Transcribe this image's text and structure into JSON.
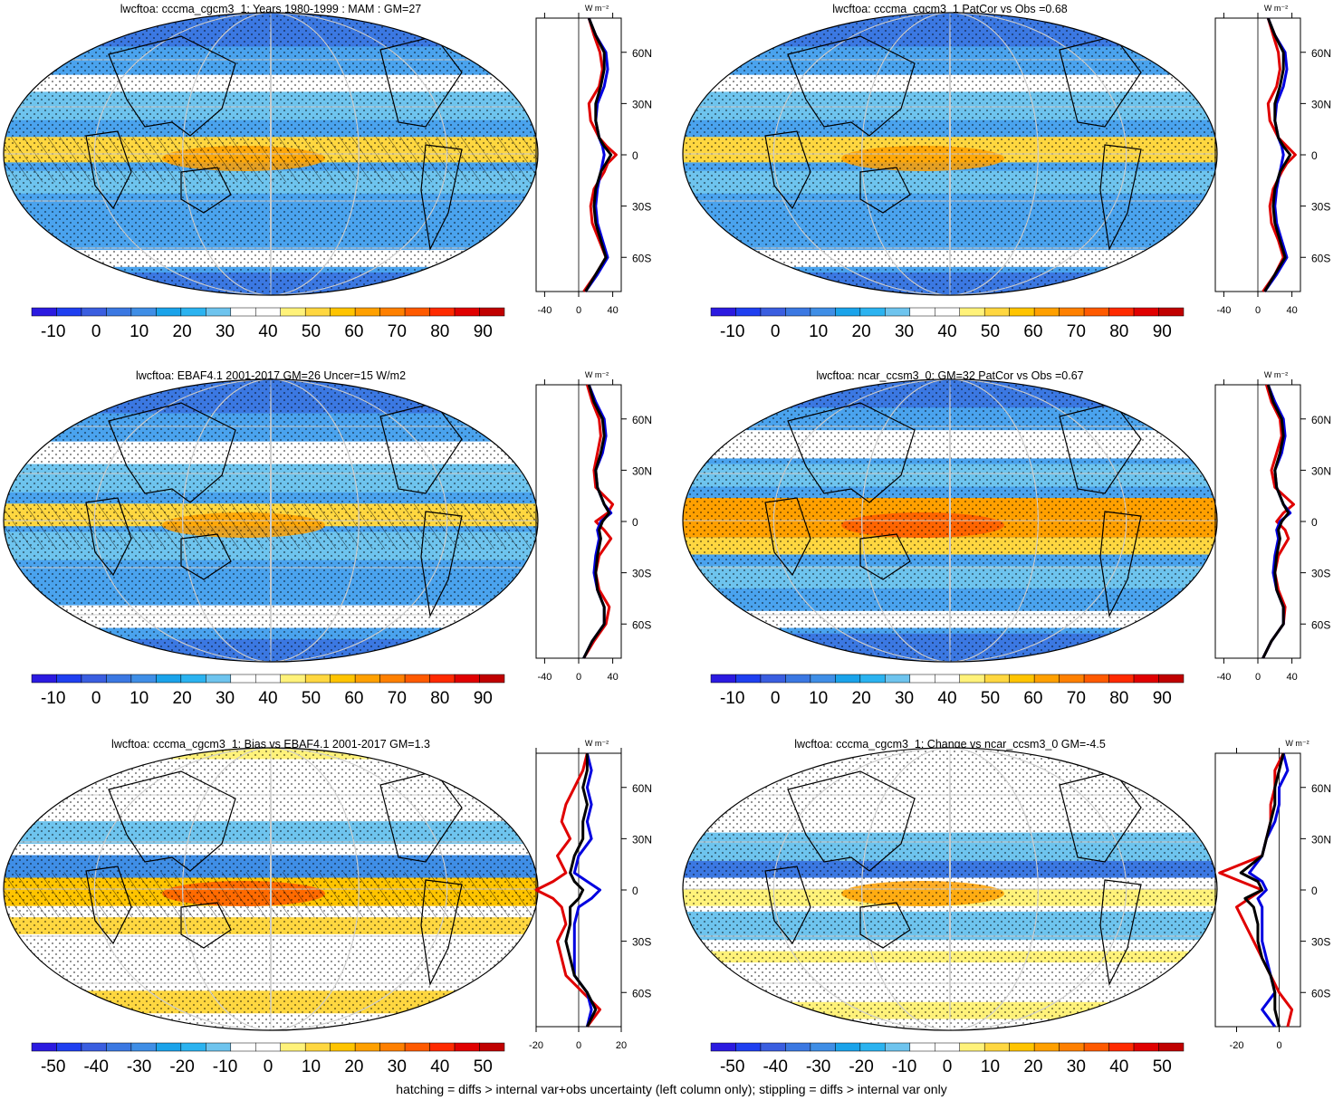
{
  "figure": {
    "caption": "hatching = diffs > internal var+obs uncertainty (left column only); stippling = diffs > internal var only"
  },
  "colors": {
    "model": "#e00000",
    "obs": "#0000e0",
    "ref": "#000000",
    "coast": "#000000"
  },
  "chart_data": [
    {
      "type": "heatmap",
      "title": "lwcftoa: cccma_cgcm3_1: Years 1980-1999 : MAM : GM=27",
      "colorbar": {
        "ticks": [
          "-10",
          "0",
          "10",
          "20",
          "30",
          "40",
          "50",
          "60",
          "70",
          "80",
          "90"
        ],
        "range": [
          -15,
          95
        ],
        "palette": "full"
      },
      "map_style": "mean",
      "hatching": true,
      "stippling": true,
      "profile": {
        "xticks": [
          "-40",
          "0",
          "40"
        ],
        "xlim": [
          -50,
          50
        ],
        "unit_label": "W m⁻²",
        "lat_labels": [
          "60N",
          "30N",
          "0",
          "30S",
          "60S"
        ],
        "lat": [
          80,
          70,
          60,
          50,
          40,
          30,
          20,
          10,
          5,
          0,
          -5,
          -10,
          -20,
          -30,
          -40,
          -50,
          -60,
          -70,
          -80
        ],
        "series": [
          {
            "role": "model",
            "values": [
              12,
              18,
              25,
              28,
              24,
              12,
              14,
              24,
              33,
              44,
              34,
              30,
              18,
              14,
              16,
              24,
              32,
              20,
              6
            ]
          },
          {
            "role": "obs",
            "values": [
              12,
              20,
              32,
              34,
              30,
              22,
              20,
              24,
              28,
              30,
              28,
              26,
              22,
              20,
              22,
              28,
              34,
              22,
              8
            ]
          },
          {
            "role": "ref",
            "values": [
              12,
              20,
              30,
              30,
              26,
              20,
              20,
              24,
              30,
              38,
              32,
              26,
              20,
              18,
              20,
              26,
              32,
              20,
              8
            ]
          }
        ]
      }
    },
    {
      "type": "heatmap",
      "title": "lwcftoa: cccma_cgcm3_1 PatCor vs Obs =0.68",
      "colorbar": {
        "ticks": [
          "-10",
          "0",
          "10",
          "20",
          "30",
          "40",
          "50",
          "60",
          "70",
          "80",
          "90"
        ],
        "range": [
          -15,
          95
        ],
        "palette": "full"
      },
      "map_style": "mean",
      "hatching": false,
      "stippling": true,
      "profile": {
        "xticks": [
          "-40",
          "0",
          "40"
        ],
        "xlim": [
          -50,
          50
        ],
        "unit_label": "W m⁻²",
        "lat_labels": [
          "60N",
          "30N",
          "0",
          "30S",
          "60S"
        ],
        "lat": [
          80,
          70,
          60,
          50,
          40,
          30,
          20,
          10,
          5,
          0,
          -5,
          -10,
          -20,
          -30,
          -40,
          -50,
          -60,
          -70,
          -80
        ],
        "series": [
          {
            "role": "model",
            "values": [
              12,
              18,
              24,
              26,
              22,
              12,
              14,
              24,
              34,
              44,
              34,
              28,
              18,
              14,
              16,
              24,
              30,
              20,
              6
            ]
          },
          {
            "role": "obs",
            "values": [
              12,
              20,
              32,
              34,
              30,
              22,
              20,
              24,
              28,
              30,
              28,
              26,
              22,
              20,
              22,
              28,
              34,
              22,
              8
            ]
          },
          {
            "role": "ref",
            "values": [
              12,
              20,
              30,
              30,
              26,
              20,
              20,
              24,
              30,
              38,
              32,
              26,
              20,
              18,
              20,
              26,
              32,
              20,
              8
            ]
          }
        ]
      }
    },
    {
      "type": "heatmap",
      "title": "lwcftoa: EBAF4.1 2001-2017 GM=26 Uncer=15 W/m2",
      "colorbar": {
        "ticks": [
          "-10",
          "0",
          "10",
          "20",
          "30",
          "40",
          "50",
          "60",
          "70",
          "80",
          "90"
        ],
        "range": [
          -15,
          95
        ],
        "palette": "full"
      },
      "map_style": "obs",
      "hatching": true,
      "stippling": true,
      "profile": {
        "xticks": [
          "-40",
          "0",
          "40"
        ],
        "xlim": [
          -50,
          50
        ],
        "unit_label": "W m⁻²",
        "lat_labels": [
          "60N",
          "30N",
          "0",
          "30S",
          "60S"
        ],
        "lat": [
          80,
          70,
          60,
          50,
          40,
          30,
          20,
          10,
          5,
          0,
          -5,
          -10,
          -20,
          -30,
          -40,
          -50,
          -60,
          -70,
          -80
        ],
        "series": [
          {
            "role": "model",
            "values": [
              10,
              16,
              24,
              26,
              22,
              18,
              20,
              40,
              34,
              20,
              30,
              38,
              24,
              20,
              24,
              36,
              32,
              18,
              6
            ]
          },
          {
            "role": "obs",
            "values": [
              12,
              20,
              30,
              32,
              28,
              20,
              22,
              30,
              38,
              26,
              22,
              24,
              20,
              18,
              22,
              30,
              30,
              16,
              6
            ]
          },
          {
            "role": "ref",
            "values": [
              12,
              18,
              28,
              30,
              26,
              20,
              22,
              30,
              36,
              28,
              24,
              26,
              22,
              20,
              22,
              30,
              30,
              16,
              6
            ]
          }
        ]
      }
    },
    {
      "type": "heatmap",
      "title": "lwcftoa: ncar_ccsm3_0: GM=32 PatCor vs Obs =0.67",
      "colorbar": {
        "ticks": [
          "-10",
          "0",
          "10",
          "20",
          "30",
          "40",
          "50",
          "60",
          "70",
          "80",
          "90"
        ],
        "range": [
          -15,
          95
        ],
        "palette": "full"
      },
      "map_style": "ncar",
      "hatching": false,
      "stippling": true,
      "profile": {
        "xticks": [
          "-40",
          "0",
          "40"
        ],
        "xlim": [
          -50,
          50
        ],
        "unit_label": "W m⁻²",
        "lat_labels": [
          "60N",
          "30N",
          "0",
          "30S",
          "60S"
        ],
        "lat": [
          80,
          70,
          60,
          50,
          40,
          30,
          20,
          10,
          5,
          0,
          -5,
          -10,
          -20,
          -30,
          -40,
          -50,
          -60,
          -70,
          -80
        ],
        "series": [
          {
            "role": "model",
            "values": [
              10,
              16,
              26,
              28,
              22,
              16,
              20,
              42,
              30,
              22,
              32,
              36,
              24,
              20,
              24,
              32,
              30,
              16,
              6
            ]
          },
          {
            "role": "obs",
            "values": [
              12,
              20,
              30,
              32,
              28,
              20,
              22,
              30,
              38,
              26,
              22,
              24,
              20,
              18,
              22,
              30,
              30,
              16,
              6
            ]
          },
          {
            "role": "ref",
            "values": [
              12,
              18,
              28,
              30,
              26,
              20,
              22,
              30,
              36,
              28,
              24,
              26,
              22,
              20,
              22,
              30,
              30,
              16,
              6
            ]
          }
        ]
      }
    },
    {
      "type": "heatmap",
      "title": "lwcftoa: cccma_cgcm3_1: Bias vs EBAF4.1 2001-2017 GM=1.3",
      "colorbar": {
        "ticks": [
          "-50",
          "-40",
          "-30",
          "-20",
          "-10",
          "0",
          "10",
          "20",
          "30",
          "40",
          "50"
        ],
        "range": [
          -55,
          55
        ],
        "palette": "full"
      },
      "map_style": "bias",
      "hatching": true,
      "stippling": true,
      "profile": {
        "xticks": [
          "-20",
          "0",
          "20"
        ],
        "xlim": [
          -20,
          20
        ],
        "unit_label": "W m⁻²",
        "lat_labels": [
          "60N",
          "30N",
          "0",
          "30S",
          "60S"
        ],
        "lat": [
          80,
          70,
          60,
          50,
          40,
          30,
          20,
          10,
          5,
          0,
          -5,
          -10,
          -20,
          -30,
          -40,
          -50,
          -60,
          -70,
          -80
        ],
        "series": [
          {
            "role": "model",
            "values": [
              4,
              2,
              -2,
              -6,
              -8,
              -4,
              -10,
              -6,
              -12,
              -20,
              -12,
              -8,
              -6,
              -10,
              -8,
              -6,
              2,
              10,
              4
            ]
          },
          {
            "role": "obs",
            "values": [
              4,
              6,
              4,
              6,
              4,
              6,
              0,
              -2,
              4,
              10,
              6,
              0,
              -2,
              -2,
              -2,
              -2,
              4,
              6,
              4
            ]
          },
          {
            "role": "ref",
            "values": [
              4,
              4,
              2,
              4,
              2,
              2,
              -2,
              -4,
              -2,
              2,
              0,
              -4,
              -4,
              -6,
              -4,
              -2,
              4,
              8,
              4
            ]
          }
        ]
      }
    },
    {
      "type": "heatmap",
      "title": "lwcftoa: cccma_cgcm3_1: Change vs ncar_ccsm3_0 GM=-4.5",
      "colorbar": {
        "ticks": [
          "-50",
          "-40",
          "-30",
          "-20",
          "-10",
          "0",
          "10",
          "20",
          "30",
          "40",
          "50"
        ],
        "range": [
          -55,
          55
        ],
        "palette": "full"
      },
      "map_style": "change",
      "hatching": false,
      "stippling": true,
      "profile": {
        "xticks": [
          "-20",
          "0"
        ],
        "xlim": [
          -30,
          10
        ],
        "unit_label": "W m⁻²",
        "lat_labels": [
          "60N",
          "30N",
          "0",
          "30S",
          "60S"
        ],
        "lat": [
          80,
          70,
          60,
          50,
          40,
          30,
          20,
          10,
          5,
          0,
          -5,
          -10,
          -20,
          -30,
          -40,
          -50,
          -60,
          -70,
          -80
        ],
        "series": [
          {
            "role": "model",
            "values": [
              2,
              -2,
              -2,
              -4,
              -4,
              -6,
              -8,
              -28,
              -18,
              -8,
              -14,
              -20,
              -16,
              -12,
              -8,
              -4,
              0,
              6,
              4
            ]
          },
          {
            "role": "obs",
            "values": [
              2,
              4,
              0,
              0,
              -2,
              -6,
              -8,
              -14,
              -8,
              -6,
              -10,
              -8,
              -8,
              -8,
              -6,
              -4,
              -2,
              -8,
              -2
            ]
          },
          {
            "role": "ref",
            "values": [
              2,
              0,
              -2,
              -2,
              -4,
              -6,
              -8,
              -18,
              -10,
              -8,
              -16,
              -12,
              -10,
              -10,
              -8,
              -4,
              -2,
              -2,
              0
            ]
          }
        ]
      }
    }
  ]
}
